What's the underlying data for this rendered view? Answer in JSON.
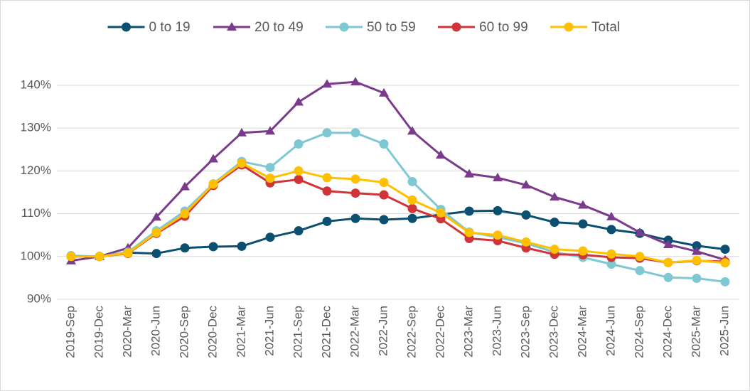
{
  "chart_data": {
    "type": "line",
    "categories": [
      "2019-Sep",
      "2019-Dec",
      "2020-Mar",
      "2020-Jun",
      "2020-Sep",
      "2020-Dec",
      "2021-Mar",
      "2021-Jun",
      "2021-Sep",
      "2021-Dec",
      "2022-Mar",
      "2022-Jun",
      "2022-Sep",
      "2022-Dec",
      "2023-Mar",
      "2023-Jun",
      "2023-Sep",
      "2023-Dec",
      "2024-Mar",
      "2024-Jun",
      "2024-Sep",
      "2024-Dec",
      "2025-Mar",
      "2025-Jun"
    ],
    "series": [
      {
        "name": "0 to 19",
        "color": "#0b4f71",
        "marker": "circle",
        "values": [
          100.1,
          100.0,
          100.9,
          100.7,
          102.0,
          102.3,
          102.4,
          104.5,
          106.0,
          108.2,
          108.9,
          108.6,
          108.9,
          109.8,
          110.6,
          110.7,
          109.7,
          108.0,
          107.6,
          106.3,
          105.4,
          103.8,
          102.5,
          101.7
        ]
      },
      {
        "name": "20 to 49",
        "color": "#7b3b8c",
        "marker": "triangle",
        "values": [
          99.0,
          100.0,
          102.0,
          109.2,
          116.3,
          122.8,
          128.9,
          129.3,
          136.1,
          140.3,
          140.8,
          138.2,
          129.3,
          123.7,
          119.3,
          118.4,
          116.7,
          113.9,
          112.0,
          109.3,
          105.6,
          102.8,
          101.2,
          99.2
        ]
      },
      {
        "name": "50 to 59",
        "color": "#7ec8d3",
        "marker": "circle",
        "values": [
          100.2,
          100.0,
          101.0,
          106.0,
          110.6,
          117.0,
          122.2,
          120.8,
          126.3,
          128.9,
          128.9,
          126.3,
          117.5,
          111.0,
          105.7,
          104.5,
          103.1,
          101.0,
          99.8,
          98.2,
          96.7,
          95.1,
          94.9,
          94.1
        ]
      },
      {
        "name": "60 to 99",
        "color": "#d13438",
        "marker": "circle",
        "values": [
          100.0,
          100.0,
          100.7,
          105.4,
          109.4,
          116.6,
          121.4,
          117.2,
          118.0,
          115.3,
          114.8,
          114.4,
          111.2,
          108.8,
          104.2,
          103.7,
          102.0,
          100.5,
          100.4,
          99.8,
          99.6,
          98.6,
          99.0,
          98.8
        ]
      },
      {
        "name": "Total",
        "color": "#ffc000",
        "marker": "circle",
        "values": [
          100.0,
          100.0,
          100.8,
          105.6,
          110.0,
          116.9,
          121.8,
          118.3,
          120.0,
          118.4,
          118.1,
          117.3,
          113.2,
          110.2,
          105.6,
          105.0,
          103.4,
          101.7,
          101.3,
          100.6,
          100.0,
          98.6,
          99.1,
          98.5
        ]
      }
    ],
    "ylim": [
      90,
      140
    ],
    "yticks": [
      {
        "value": 90,
        "label": "90%"
      },
      {
        "value": 100,
        "label": "100%"
      },
      {
        "value": 110,
        "label": "110%"
      },
      {
        "value": 120,
        "label": "120%"
      },
      {
        "value": 130,
        "label": "130%"
      },
      {
        "value": 140,
        "label": "140%"
      }
    ],
    "grid": true,
    "legend": "top"
  }
}
